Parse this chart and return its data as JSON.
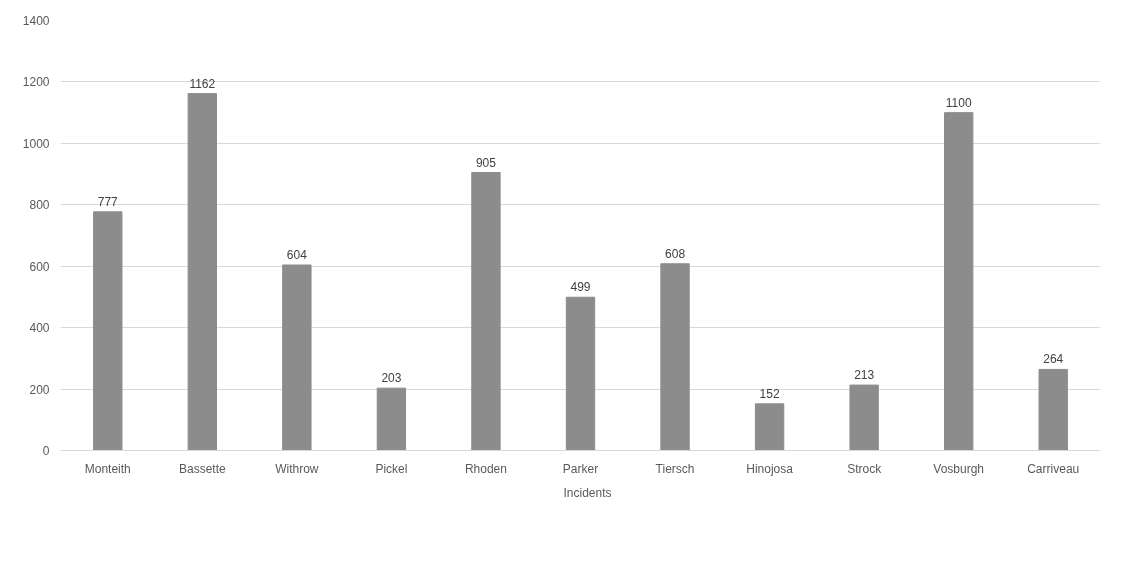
{
  "chart_data": {
    "type": "bar",
    "categories": [
      "Monteith",
      "Bassette",
      "Withrow",
      "Pickel",
      "Rhoden",
      "Parker",
      "Tiersch",
      "Hinojosa",
      "Strock",
      "Vosburgh",
      "Carriveau"
    ],
    "series": [
      {
        "name": "Incidents",
        "color": "#8c8c8c",
        "values": [
          777,
          1162,
          604,
          203,
          905,
          499,
          608,
          152,
          213,
          1100,
          264
        ]
      }
    ],
    "ylim": [
      0,
      1400
    ],
    "yticks": [
      0,
      200,
      400,
      600,
      800,
      1000,
      1200,
      1400
    ],
    "grid": "y",
    "legend": "bottom",
    "data_labels": true
  }
}
